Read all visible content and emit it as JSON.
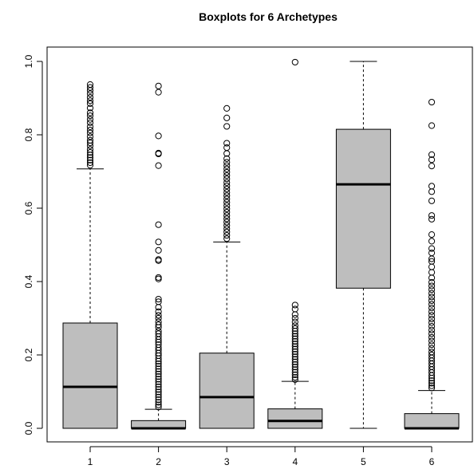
{
  "chart_data": {
    "type": "boxplot",
    "title": "Boxplots for 6 Archetypes",
    "xlabel": "",
    "ylabel": "",
    "ylim": [
      -0.01,
      1.01
    ],
    "y_ticks": [
      0.0,
      0.2,
      0.4,
      0.6,
      0.8,
      1.0
    ],
    "y_tick_labels": [
      "0.0",
      "0.2",
      "0.4",
      "0.6",
      "0.8",
      "1.0"
    ],
    "categories": [
      "1",
      "2",
      "3",
      "4",
      "5",
      "6"
    ],
    "box_color": "#bebebe",
    "boxes": [
      {
        "label": "1",
        "min": 0.0,
        "q1": 0.0,
        "median": 0.113,
        "q3": 0.287,
        "max": 0.707,
        "outliers": [
          0.937,
          0.929,
          0.921,
          0.912,
          0.902,
          0.893,
          0.885,
          0.873,
          0.86,
          0.852,
          0.842,
          0.833,
          0.822,
          0.813,
          0.805,
          0.795,
          0.785,
          0.778,
          0.77,
          0.76,
          0.752,
          0.745,
          0.738,
          0.731,
          0.724,
          0.717
        ]
      },
      {
        "label": "2",
        "min": 0.0,
        "q1": 0.0,
        "median": 0.0,
        "q3": 0.021,
        "max": 0.052,
        "outliers": [
          0.933,
          0.916,
          0.797,
          0.75,
          0.748,
          0.716,
          0.555,
          0.508,
          0.485,
          0.46,
          0.457,
          0.411,
          0.407,
          0.352,
          0.345,
          0.33,
          0.318,
          0.308,
          0.3,
          0.29,
          0.282,
          0.275,
          0.265,
          0.258,
          0.25,
          0.242,
          0.235,
          0.228,
          0.22,
          0.213,
          0.205,
          0.198,
          0.19,
          0.183,
          0.176,
          0.169,
          0.162,
          0.155,
          0.148,
          0.141,
          0.134,
          0.127,
          0.12,
          0.113,
          0.106,
          0.099,
          0.092,
          0.085,
          0.078,
          0.071,
          0.064,
          0.058
        ]
      },
      {
        "label": "3",
        "min": 0.0,
        "q1": 0.0,
        "median": 0.085,
        "q3": 0.205,
        "max": 0.508,
        "outliers": [
          0.872,
          0.846,
          0.823,
          0.777,
          0.765,
          0.749,
          0.735,
          0.725,
          0.716,
          0.707,
          0.698,
          0.689,
          0.68,
          0.67,
          0.661,
          0.652,
          0.643,
          0.634,
          0.625,
          0.616,
          0.607,
          0.598,
          0.589,
          0.58,
          0.571,
          0.562,
          0.553,
          0.544,
          0.535,
          0.526,
          0.517
        ]
      },
      {
        "label": "4",
        "min": 0.0,
        "q1": 0.0,
        "median": 0.02,
        "q3": 0.053,
        "max": 0.128,
        "outliers": [
          0.998,
          0.336,
          0.325,
          0.31,
          0.3,
          0.29,
          0.28,
          0.272,
          0.265,
          0.258,
          0.251,
          0.244,
          0.237,
          0.23,
          0.223,
          0.216,
          0.209,
          0.202,
          0.195,
          0.188,
          0.181,
          0.174,
          0.167,
          0.16,
          0.153,
          0.146,
          0.139,
          0.133
        ]
      },
      {
        "label": "5",
        "min": 0.0,
        "q1": 0.382,
        "median": 0.665,
        "q3": 0.815,
        "max": 1.0,
        "outliers": []
      },
      {
        "label": "6",
        "min": 0.0,
        "q1": 0.0,
        "median": 0.0,
        "q3": 0.04,
        "max": 0.103,
        "outliers": [
          0.889,
          0.825,
          0.746,
          0.732,
          0.715,
          0.66,
          0.645,
          0.62,
          0.58,
          0.57,
          0.528,
          0.51,
          0.49,
          0.478,
          0.462,
          0.455,
          0.44,
          0.425,
          0.41,
          0.398,
          0.388,
          0.378,
          0.368,
          0.358,
          0.348,
          0.338,
          0.328,
          0.318,
          0.308,
          0.298,
          0.288,
          0.278,
          0.268,
          0.258,
          0.248,
          0.238,
          0.228,
          0.218,
          0.208,
          0.2,
          0.192,
          0.184,
          0.176,
          0.168,
          0.16,
          0.152,
          0.144,
          0.137,
          0.13,
          0.123,
          0.116,
          0.11
        ]
      }
    ]
  }
}
